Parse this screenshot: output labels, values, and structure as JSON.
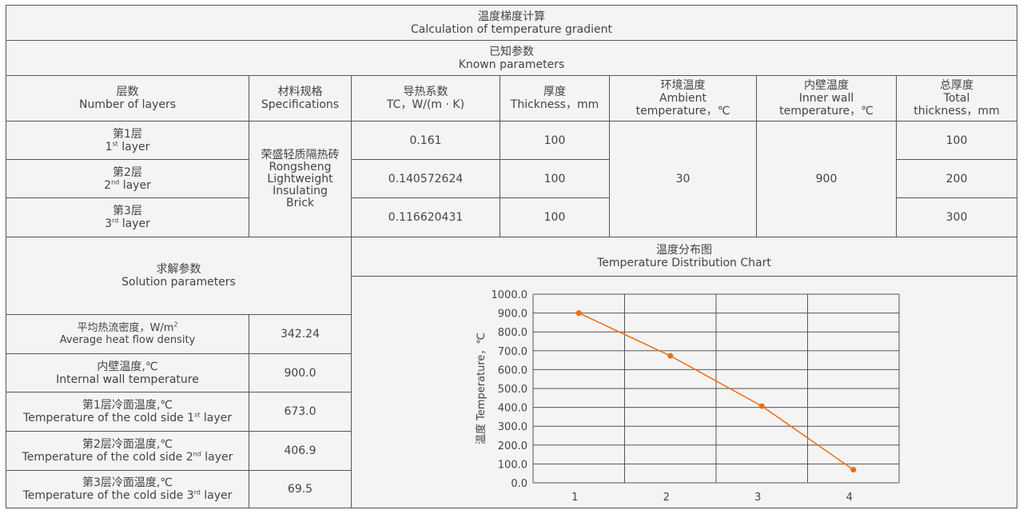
{
  "title": {
    "zh": "温度梯度计算",
    "en": "Calculation of temperature gradient"
  },
  "known": {
    "zh": "已知参数",
    "en": "Known parameters"
  },
  "headers": [
    {
      "zh": "层数",
      "en": "Number of layers"
    },
    {
      "zh": "材料规格",
      "en": "Specifications"
    },
    {
      "zh": "导热系数",
      "en": "TC，W/(m · K)"
    },
    {
      "zh": "厚度",
      "en": "Thickness，mm"
    },
    {
      "zh": "环境温度",
      "en": "Ambient",
      "en2": "temperature，℃"
    },
    {
      "zh": "内壁温度",
      "en": "Inner wall",
      "en2": "temperature，℃"
    },
    {
      "zh": "总厚度",
      "en": "Total",
      "en2": "thickness，mm"
    }
  ],
  "layers": [
    {
      "zh": "第1层",
      "num": "1",
      "sup": "st",
      "en": "layer",
      "tc": "0.161",
      "thickness": "100",
      "total": "100"
    },
    {
      "zh": "第2层",
      "num": "2",
      "sup": "nd",
      "en": "layer",
      "tc": "0.140572624",
      "thickness": "100",
      "total": "200"
    },
    {
      "zh": "第3层",
      "num": "3",
      "sup": "rd",
      "en": "layer",
      "tc": "0.116620431",
      "thickness": "100",
      "total": "300"
    }
  ],
  "material": {
    "zh": "荣盛轻质隔热砖",
    "en1": "Rongsheng",
    "en2": "Lightweight",
    "en3": "Insulating",
    "en4": "Brick"
  },
  "ambient": "30",
  "inner_wall": "900",
  "solution": {
    "zh": "求解参数",
    "en": "Solution parameters",
    "rows": [
      {
        "zh": "平均热流密度，W/m",
        "zh_sup": "2",
        "en": "Average heat flow density",
        "value": "342.24"
      },
      {
        "zh": "内壁温度,℃",
        "en": "Internal wall temperature",
        "value": "900.0"
      },
      {
        "zh": "第1层冷面温度,℃",
        "en": "Temperature of the cold side 1",
        "sup": "st",
        "en_tail": "layer",
        "value": "673.0"
      },
      {
        "zh": "第2层冷面温度,℃",
        "en": "Temperature of the cold side 2",
        "sup": "nd",
        "en_tail": "layer",
        "value": "406.9"
      },
      {
        "zh": "第3层冷面温度,℃",
        "en": "Temperature of the cold side 3",
        "sup": "rd",
        "en_tail": "layer",
        "value": "69.5"
      }
    ]
  },
  "chart_title": {
    "zh": "温度分布图",
    "en": "Temperature Distribution Chart"
  },
  "chart_data": {
    "type": "line",
    "categories": [
      "1",
      "2",
      "3",
      "4"
    ],
    "values": [
      900.0,
      673.0,
      406.9,
      69.5
    ],
    "ylabel": "温度 Temperature，℃",
    "xlabel": "",
    "ylim": [
      0,
      1000
    ],
    "yticks": [
      "0.0",
      "100.0",
      "200.0",
      "300.0",
      "400.0",
      "500.0",
      "600.0",
      "700.0",
      "800.0",
      "900.0",
      "1000.0"
    ],
    "grid": true,
    "color": "#f26b10"
  }
}
